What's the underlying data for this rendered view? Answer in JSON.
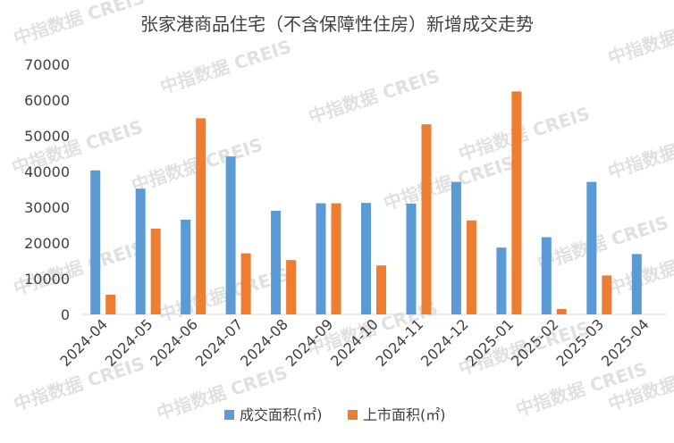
{
  "watermark": "中指数据 CREIS",
  "chart_data": {
    "type": "bar",
    "title": "张家港商品住宅（不含保障性住房）新增成交走势",
    "xlabel": "",
    "ylabel": "",
    "ylim": [
      0,
      70000
    ],
    "yticks": [
      0,
      10000,
      20000,
      30000,
      40000,
      50000,
      60000,
      70000
    ],
    "ytick_labels": [
      "0",
      "10000",
      "20000",
      "30000",
      "40000",
      "50000",
      "60000",
      "70000"
    ],
    "grid": false,
    "legend_position": "bottom",
    "categories": [
      "2024-04",
      "2024-05",
      "2024-06",
      "2024-07",
      "2024-08",
      "2024-09",
      "2024-10",
      "2024-11",
      "2024-12",
      "2025-01",
      "2025-02",
      "2025-03",
      "2025-04"
    ],
    "series": [
      {
        "name": "成交面积(㎡)",
        "color": "#5b9bd5",
        "values": [
          40300,
          35200,
          26500,
          44200,
          29000,
          31100,
          31200,
          31000,
          37100,
          18700,
          21600,
          37100,
          16900
        ]
      },
      {
        "name": "上市面积(㎡)",
        "color": "#ed7d31",
        "values": [
          5500,
          24000,
          54900,
          17100,
          15200,
          31100,
          13700,
          53200,
          26300,
          62400,
          1500,
          10900,
          0
        ]
      }
    ]
  }
}
